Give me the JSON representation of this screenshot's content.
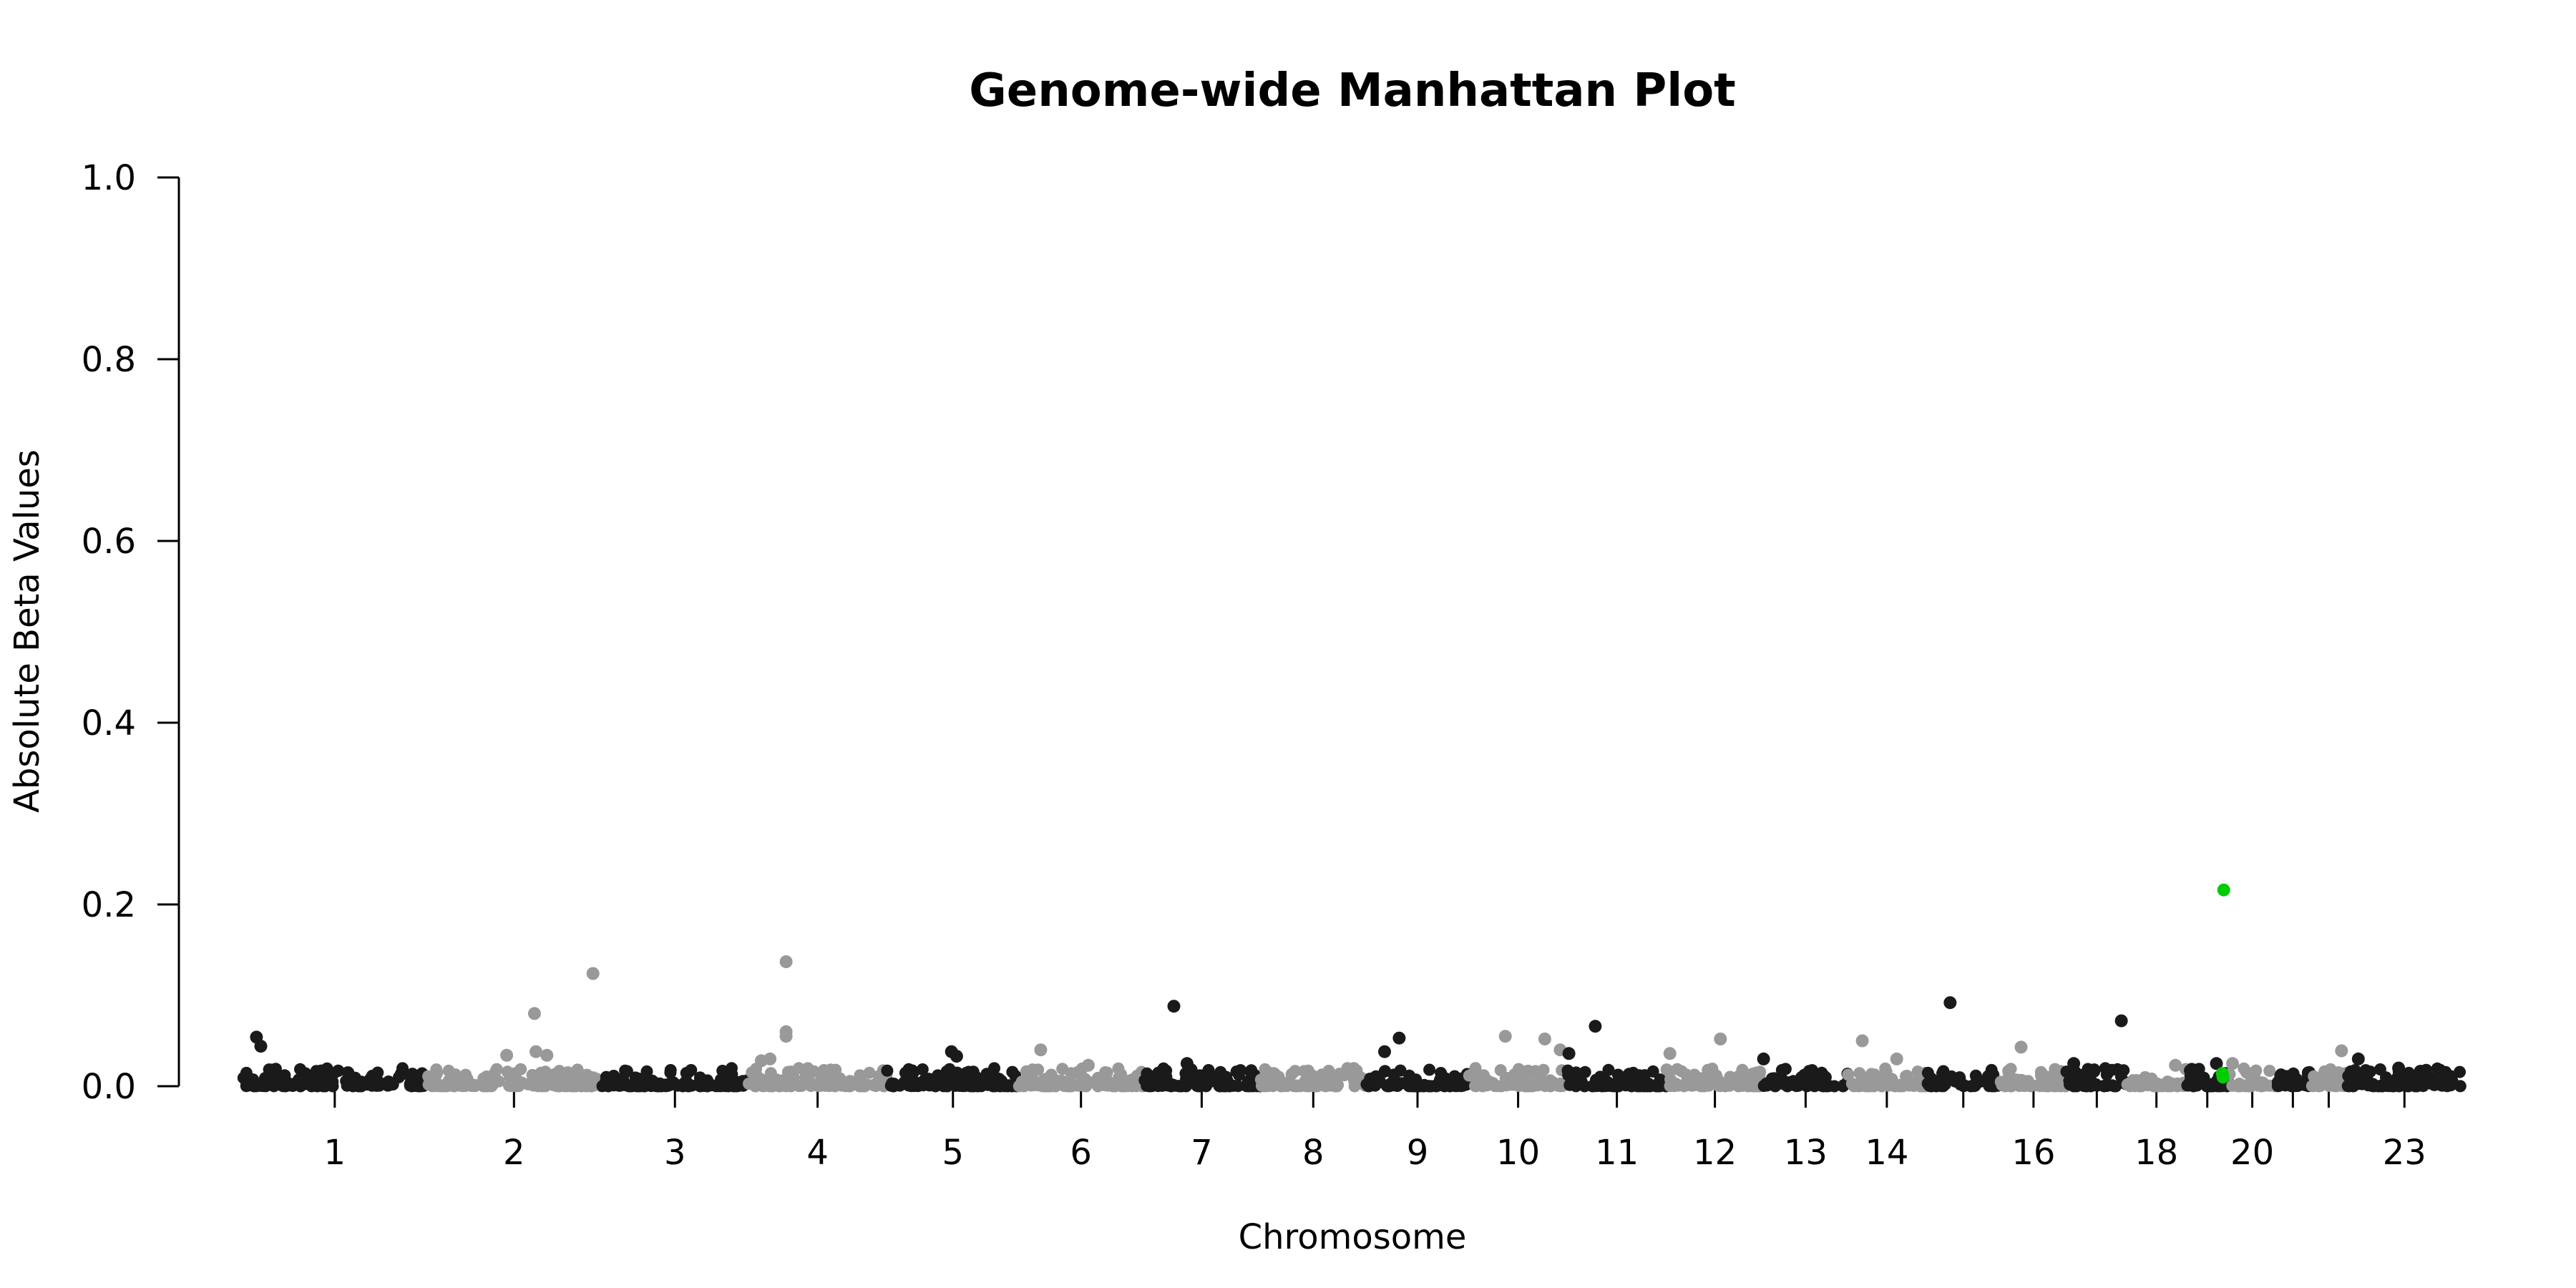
{
  "chart_data": {
    "type": "scatter",
    "title": "Genome-wide Manhattan Plot",
    "xlabel": "Chromosome",
    "ylabel": "Absolute Beta Values",
    "ylim": [
      0,
      1.0
    ],
    "y_ticks": [
      "0.0",
      "0.2",
      "0.4",
      "0.6",
      "0.8",
      "1.0"
    ],
    "x_unit": "Mb",
    "grid": false,
    "legend": "none",
    "colors": {
      "odd_chromosomes": "#1a1a1a",
      "even_chromosomes": "#999999",
      "highlight": "#00cc00"
    },
    "chromosomes": [
      {
        "label": "1",
        "length": 250
      },
      {
        "label": "2",
        "length": 240
      },
      {
        "label": "3",
        "length": 200
      },
      {
        "label": "4",
        "length": 190
      },
      {
        "label": "5",
        "length": 180
      },
      {
        "label": "6",
        "length": 170
      },
      {
        "label": "7",
        "length": 160
      },
      {
        "label": "",
        "length": 145
      },
      {
        "label": "9",
        "length": 140
      },
      {
        "label": "10",
        "length": 135
      },
      {
        "label": "11",
        "length": 135
      },
      {
        "label": "12",
        "length": 133
      },
      {
        "label": "13",
        "length": 115
      },
      {
        "label": "14",
        "length": 107
      },
      {
        "label": "",
        "length": 102
      },
      {
        "label": "16",
        "length": 90
      },
      {
        "label": "",
        "length": 83
      },
      {
        "label": "18",
        "length": 80
      },
      {
        "label": "",
        "length": 59
      },
      {
        "label": "20",
        "length": 64
      },
      {
        "label": "",
        "length": 47
      },
      {
        "label": "",
        "length": 51
      },
      {
        "label": "23",
        "length": 156
      }
    ],
    "tick_labels": [
      {
        "chromosome": "1",
        "label": "1"
      },
      {
        "chromosome": "2",
        "label": "2"
      },
      {
        "chromosome": "3",
        "label": "3"
      },
      {
        "chromosome": "4",
        "label": "4"
      },
      {
        "chromosome": "5",
        "label": "5"
      },
      {
        "chromosome": "6",
        "label": "6"
      },
      {
        "chromosome": "7",
        "label": "7"
      },
      {
        "chromosome": "8",
        "label": "8",
        "bp": 0
      },
      {
        "chromosome": "9",
        "label": "9"
      },
      {
        "chromosome": "10",
        "label": "10"
      },
      {
        "chromosome": "11",
        "label": "11"
      },
      {
        "chromosome": "12",
        "label": "12"
      },
      {
        "chromosome": "13",
        "label": "13"
      },
      {
        "chromosome": "14",
        "label": "14"
      },
      {
        "chromosome": "15",
        "label": "",
        "bp": 0
      },
      {
        "chromosome": "16",
        "label": "16"
      },
      {
        "chromosome": "17",
        "label": "",
        "bp": 0
      },
      {
        "chromosome": "18",
        "label": "18"
      },
      {
        "chromosome": "19",
        "label": "",
        "bp": 0
      },
      {
        "chromosome": "20",
        "label": "20"
      },
      {
        "chromosome": "21",
        "label": "",
        "bp": 0
      },
      {
        "chromosome": "22",
        "label": "",
        "bp": 0
      },
      {
        "chromosome": "23",
        "label": "23"
      }
    ],
    "notable_points": [
      {
        "chr": 1,
        "pos": 18,
        "y": 0.054
      },
      {
        "chr": 1,
        "pos": 24,
        "y": 0.044
      },
      {
        "chr": 2,
        "pos": 148,
        "y": 0.08
      },
      {
        "chr": 2,
        "pos": 228,
        "y": 0.124
      },
      {
        "chr": 2,
        "pos": 110,
        "y": 0.034
      },
      {
        "chr": 2,
        "pos": 150,
        "y": 0.038
      },
      {
        "chr": 2,
        "pos": 165,
        "y": 0.034
      },
      {
        "chr": 4,
        "pos": 52,
        "y": 0.137
      },
      {
        "chr": 4,
        "pos": 52,
        "y": 0.06
      },
      {
        "chr": 4,
        "pos": 52,
        "y": 0.055
      },
      {
        "chr": 4,
        "pos": 30,
        "y": 0.03
      },
      {
        "chr": 4,
        "pos": 18,
        "y": 0.028
      },
      {
        "chr": 5,
        "pos": 88,
        "y": 0.038
      },
      {
        "chr": 5,
        "pos": 95,
        "y": 0.033
      },
      {
        "chr": 6,
        "pos": 30,
        "y": 0.04
      },
      {
        "chr": 6,
        "pos": 95,
        "y": 0.023
      },
      {
        "chr": 7,
        "pos": 42,
        "y": 0.088
      },
      {
        "chr": 7,
        "pos": 60,
        "y": 0.025
      },
      {
        "chr": 9,
        "pos": 25,
        "y": 0.038
      },
      {
        "chr": 9,
        "pos": 45,
        "y": 0.053
      },
      {
        "chr": 10,
        "pos": 50,
        "y": 0.055
      },
      {
        "chr": 10,
        "pos": 104,
        "y": 0.052
      },
      {
        "chr": 10,
        "pos": 125,
        "y": 0.04
      },
      {
        "chr": 11,
        "pos": 2,
        "y": 0.036
      },
      {
        "chr": 11,
        "pos": 38,
        "y": 0.066
      },
      {
        "chr": 12,
        "pos": 5,
        "y": 0.036
      },
      {
        "chr": 12,
        "pos": 74,
        "y": 0.052
      },
      {
        "chr": 13,
        "pos": 0,
        "y": 0.03
      },
      {
        "chr": 14,
        "pos": 20,
        "y": 0.05
      },
      {
        "chr": 14,
        "pos": 67,
        "y": 0.03
      },
      {
        "chr": 15,
        "pos": 33,
        "y": 0.092
      },
      {
        "chr": 16,
        "pos": 28,
        "y": 0.043
      },
      {
        "chr": 17,
        "pos": 10,
        "y": 0.025
      },
      {
        "chr": 17,
        "pos": 75,
        "y": 0.072
      },
      {
        "chr": 18,
        "pos": 66,
        "y": 0.023
      },
      {
        "chr": 19,
        "pos": 42,
        "y": 0.025
      },
      {
        "chr": 20,
        "pos": 5,
        "y": 0.025
      },
      {
        "chr": 22,
        "pos": 43,
        "y": 0.039
      },
      {
        "chr": 23,
        "pos": 15,
        "y": 0.03
      },
      {
        "chr": 23,
        "pos": 70,
        "y": 0.02
      }
    ],
    "highlighted_points": [
      {
        "chr": 19,
        "pos": 52,
        "y": 0.216
      },
      {
        "chr": 19,
        "pos": 50,
        "y": 0.014
      },
      {
        "chr": 19,
        "pos": 51,
        "y": 0.01
      }
    ]
  }
}
